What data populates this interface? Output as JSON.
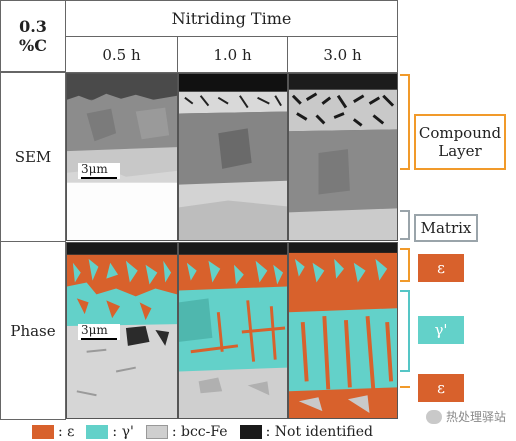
{
  "corner": {
    "line1": "0.3",
    "line2": "%C"
  },
  "header": {
    "title": "Nitriding Time"
  },
  "columns": [
    "0.5 h",
    "1.0 h",
    "3.0 h"
  ],
  "rows": [
    "SEM",
    "Phase"
  ],
  "scale_bar": "3μm",
  "annotations": {
    "compound_layer": "Compound Layer",
    "matrix": "Matrix",
    "epsilon": "ε",
    "gamma_prime": "γ'"
  },
  "legend": [
    {
      "label": ": ε",
      "color": "#d8612c"
    },
    {
      "label": ": γ'",
      "color": "#63d1c9"
    },
    {
      "label": ": bcc-Fe",
      "color": "#cfcfcf"
    },
    {
      "label": ": Not identified",
      "color": "#1a1a1a"
    }
  ],
  "watermark": "热处理驿站",
  "colors": {
    "epsilon": "#d8612c",
    "gamma_prime": "#63d1c9",
    "bcc_fe": "#cfcfcf",
    "not_identified": "#1a1a1a",
    "compound_bracket": "#f19a2a",
    "matrix_bracket": "#9aa4aa",
    "gamma_bracket": "#55c6c6"
  }
}
